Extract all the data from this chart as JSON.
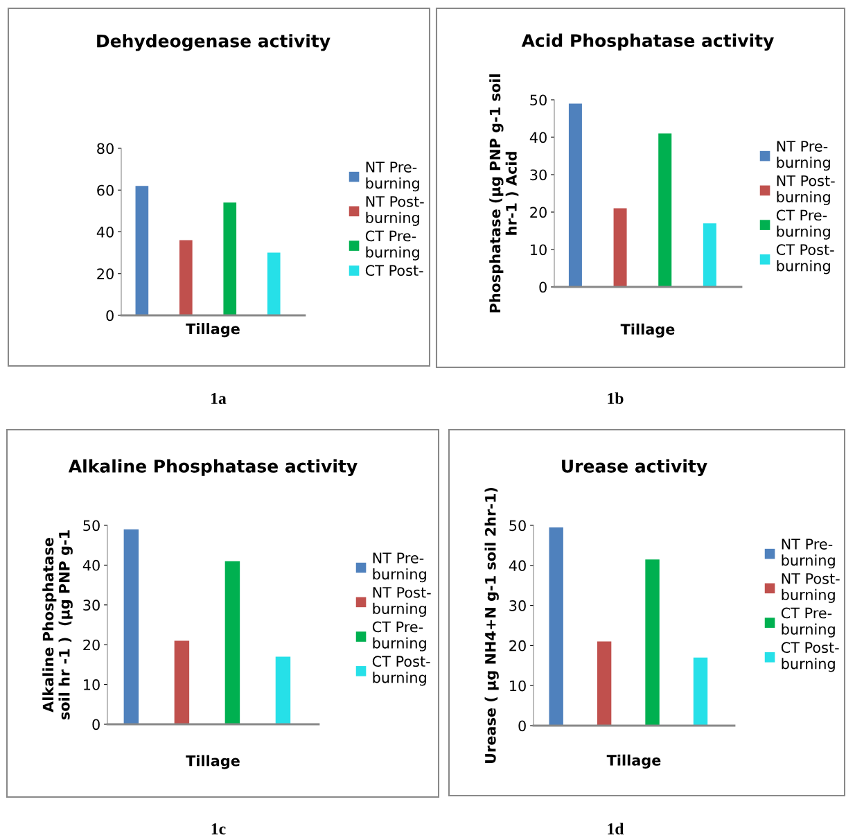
{
  "chart_data": [
    {
      "type": "bar",
      "title": "Dehydeogenase activity",
      "xlabel": "Tillage",
      "categories": [
        null
      ],
      "ylim": [
        0,
        80
      ],
      "yticks": [
        0,
        20,
        40,
        60,
        80
      ],
      "grid": false,
      "legend": "right",
      "annotations": [
        "1a"
      ],
      "series": [
        {
          "name": "NT Pre-\nburning",
          "color": "#4f81bd",
          "values": [
            62
          ]
        },
        {
          "name": "NT Post-\nburning",
          "color": "#c0504d",
          "values": [
            36
          ]
        },
        {
          "name": "CT Pre-\nburning",
          "color": "#00b050",
          "values": [
            54
          ]
        },
        {
          "name": "CT Post-",
          "color": "#26e0e8",
          "values": [
            30
          ]
        }
      ]
    },
    {
      "type": "bar",
      "title": "Acid Phosphatase activity",
      "xlabel": "Tillage",
      "ylabel": "Phosphatase (µg PNP g-1 soil\nhr-1 ) Acid",
      "categories": [
        null
      ],
      "ylim": [
        0,
        50
      ],
      "yticks": [
        0,
        10,
        20,
        30,
        40,
        50
      ],
      "grid": false,
      "legend": "right",
      "annotations": [
        "1b"
      ],
      "series": [
        {
          "name": "NT Pre-\nburning",
          "color": "#4f81bd",
          "values": [
            49
          ]
        },
        {
          "name": "NT Post-\nburning",
          "color": "#c0504d",
          "values": [
            21
          ]
        },
        {
          "name": "CT Pre-\nburning",
          "color": "#00b050",
          "values": [
            41
          ]
        },
        {
          "name": "CT Post-\nburning",
          "color": "#26e0e8",
          "values": [
            17
          ]
        }
      ]
    },
    {
      "type": "bar",
      "title": "Alkaline Phosphatase activity",
      "xlabel": "Tillage",
      "ylabel": "Alkaline Phosphatase\nsoil hr -1 )  (µg PNP g-1",
      "categories": [
        null
      ],
      "ylim": [
        0,
        50
      ],
      "yticks": [
        0,
        10,
        20,
        30,
        40,
        50
      ],
      "grid": false,
      "legend": "right",
      "annotations": [
        "1c"
      ],
      "series": [
        {
          "name": "NT Pre-\nburning",
          "color": "#4f81bd",
          "values": [
            49
          ]
        },
        {
          "name": "NT Post-\nburning",
          "color": "#c0504d",
          "values": [
            21
          ]
        },
        {
          "name": "CT Pre-\nburning",
          "color": "#00b050",
          "values": [
            41
          ]
        },
        {
          "name": "CT Post-\nburning",
          "color": "#26e0e8",
          "values": [
            17
          ]
        }
      ]
    },
    {
      "type": "bar",
      "title": "Urease activity",
      "xlabel": "Tillage",
      "ylabel": "Urease ( µg NH4+N g-1 soil 2hr-1)",
      "categories": [
        null
      ],
      "ylim": [
        0,
        50
      ],
      "yticks": [
        0,
        10,
        20,
        30,
        40,
        50
      ],
      "grid": false,
      "legend": "right",
      "annotations": [
        "1d"
      ],
      "series": [
        {
          "name": "NT Pre-\nburning",
          "color": "#4f81bd",
          "values": [
            49.5
          ]
        },
        {
          "name": "NT Post-\nburning",
          "color": "#c0504d",
          "values": [
            21
          ]
        },
        {
          "name": "CT Pre-\nburning",
          "color": "#00b050",
          "values": [
            41.5
          ]
        },
        {
          "name": "CT Post-\nburning",
          "color": "#26e0e8",
          "values": [
            17
          ]
        }
      ]
    }
  ]
}
